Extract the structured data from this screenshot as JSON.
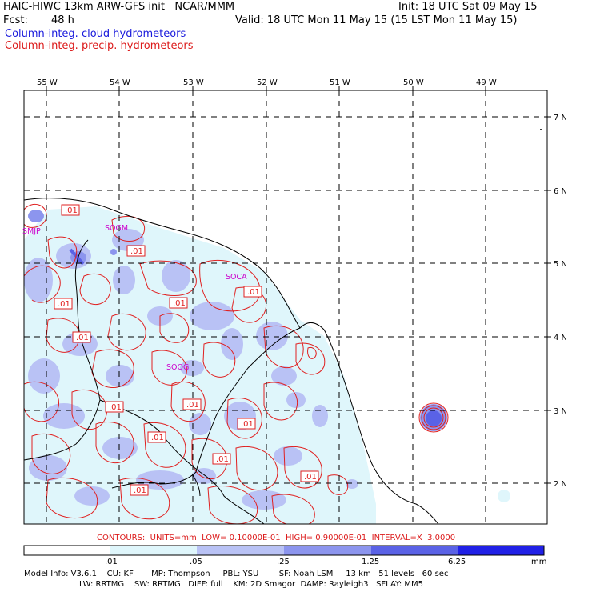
{
  "header": {
    "line1_left": "HAIC-HIWC 13km ARW-GFS init   NCAR/MMM",
    "line1_right": "Init: 18 UTC Sat 09 May 15",
    "fcst_label": "Fcst:",
    "fcst_value": "48 h",
    "valid": "Valid: 18 UTC Mon 11 May 15 (15 LST Mon 11 May 15)",
    "field1": "Column-integ. cloud hydrometeors",
    "field2": "Column-integ. precip. hydrometeors"
  },
  "colors": {
    "field1": "#1a1adc",
    "field2": "#dc1a1a",
    "contour": "#e02020",
    "station": "#cc00cc",
    "fill_light": "#dff6fb",
    "fill_mid": "#b9c2f5",
    "fill_dark": "#8c95ee"
  },
  "map": {
    "lon_labels": [
      "55 W",
      "54 W",
      "53 W",
      "52 W",
      "51 W",
      "50 W",
      "49 W"
    ],
    "lat_labels": [
      "7 N",
      "6 N",
      "5 N",
      "4 N",
      "3 N",
      "2 N"
    ],
    "stations": [
      "SMJP",
      "SOGM",
      "SOCA",
      "SOOG"
    ],
    "contour_label": ".01"
  },
  "contours_line": "CONTOURS:  UNITS=mm  LOW= 0.10000E-01  HIGH= 0.90000E-01  INTERVAL=X  3.0000",
  "colorbar": {
    "ticks": [
      ".01",
      ".05",
      ".25",
      "1.25",
      "6.25"
    ],
    "unit": "mm",
    "colors": [
      "#ffffff",
      "#dff6fb",
      "#b9c2f5",
      "#8c95ee",
      "#5a62e6",
      "#2020e6"
    ]
  },
  "footer": {
    "line1": "Model Info: V3.6.1    CU: KF       MP: Thompson     PBL: YSU        SF: Noah LSM     13 km   51 levels   60 sec",
    "line2": "LW: RRTMG    SW: RRTMG   DIFF: full    KM: 2D Smagor  DAMP: Rayleigh3   SFLAY: MM5"
  }
}
